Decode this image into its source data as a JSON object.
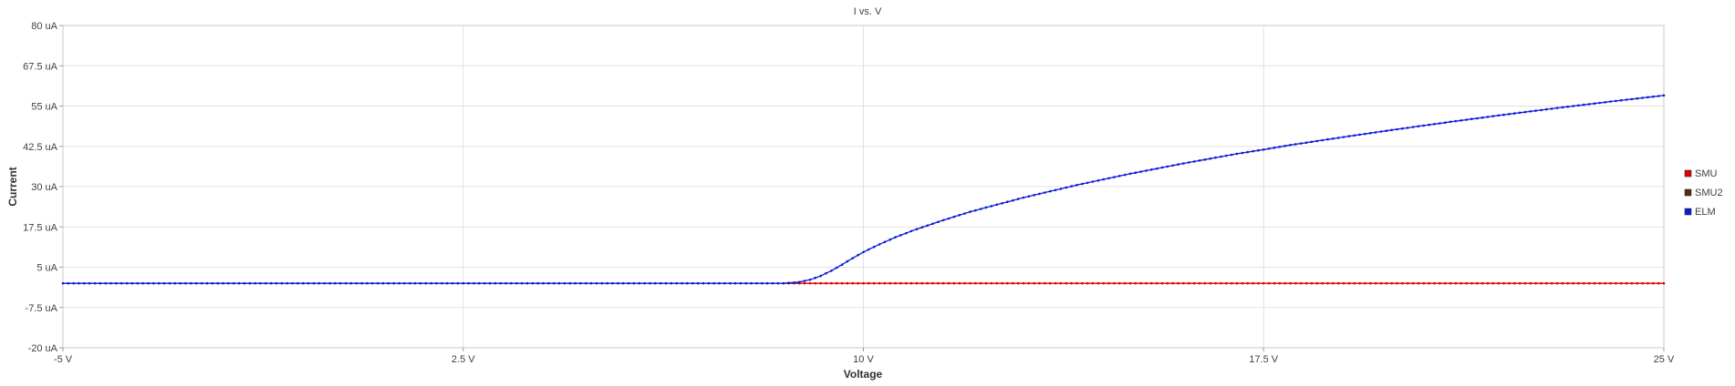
{
  "chart_data": {
    "type": "line",
    "title": "I vs. V",
    "xlabel": "Voltage",
    "ylabel": "Current",
    "xlim": [
      -5,
      25
    ],
    "ylim": [
      -20,
      80
    ],
    "grid": true,
    "legend_position": "right",
    "x_ticks": [
      {
        "value": -5,
        "label": "-5 V"
      },
      {
        "value": 2.5,
        "label": "2.5 V"
      },
      {
        "value": 10,
        "label": "10 V"
      },
      {
        "value": 17.5,
        "label": "17.5 V"
      },
      {
        "value": 25,
        "label": "25 V"
      }
    ],
    "y_ticks": [
      {
        "value": 80,
        "label": "80 uA"
      },
      {
        "value": 67.5,
        "label": "67.5 uA"
      },
      {
        "value": 55,
        "label": "55 uA"
      },
      {
        "value": 42.5,
        "label": "42.5 uA"
      },
      {
        "value": 30,
        "label": "30 uA"
      },
      {
        "value": 17.5,
        "label": "17.5 uA"
      },
      {
        "value": 5,
        "label": "5 uA"
      },
      {
        "value": -7.5,
        "label": "-7.5 uA"
      },
      {
        "value": -20,
        "label": "-20 uA"
      }
    ],
    "series": [
      {
        "name": "SMU",
        "color": "#e00000",
        "x": [
          8.5,
          10,
          12,
          14,
          16,
          18,
          20,
          22,
          24,
          25
        ],
        "y": [
          0,
          0,
          0,
          0,
          0,
          0,
          0,
          0,
          0,
          0
        ]
      },
      {
        "name": "SMU2",
        "color": "#5a2a0a",
        "x": [],
        "y": []
      },
      {
        "name": "ELM",
        "color": "#0a1ad8",
        "x": [
          -5,
          -2.5,
          0,
          2.5,
          5,
          7.5,
          8.5,
          8.8,
          9.0,
          9.2,
          9.4,
          9.6,
          9.8,
          10.0,
          10.3,
          10.6,
          11.0,
          11.5,
          12.0,
          13.0,
          14.0,
          15.0,
          16.0,
          17.0,
          17.5,
          18.0,
          19.0,
          20.0,
          21.0,
          22.0,
          23.0,
          24.0,
          25.0
        ],
        "y": [
          0,
          0,
          0,
          0,
          0,
          0,
          0,
          0.4,
          1.1,
          2.3,
          3.9,
          5.8,
          7.8,
          9.7,
          12.1,
          14.3,
          16.8,
          19.6,
          22.2,
          26.6,
          30.5,
          34.0,
          37.2,
          40.2,
          41.5,
          42.9,
          45.4,
          47.8,
          50.1,
          52.3,
          54.4,
          56.4,
          58.3
        ]
      }
    ]
  }
}
